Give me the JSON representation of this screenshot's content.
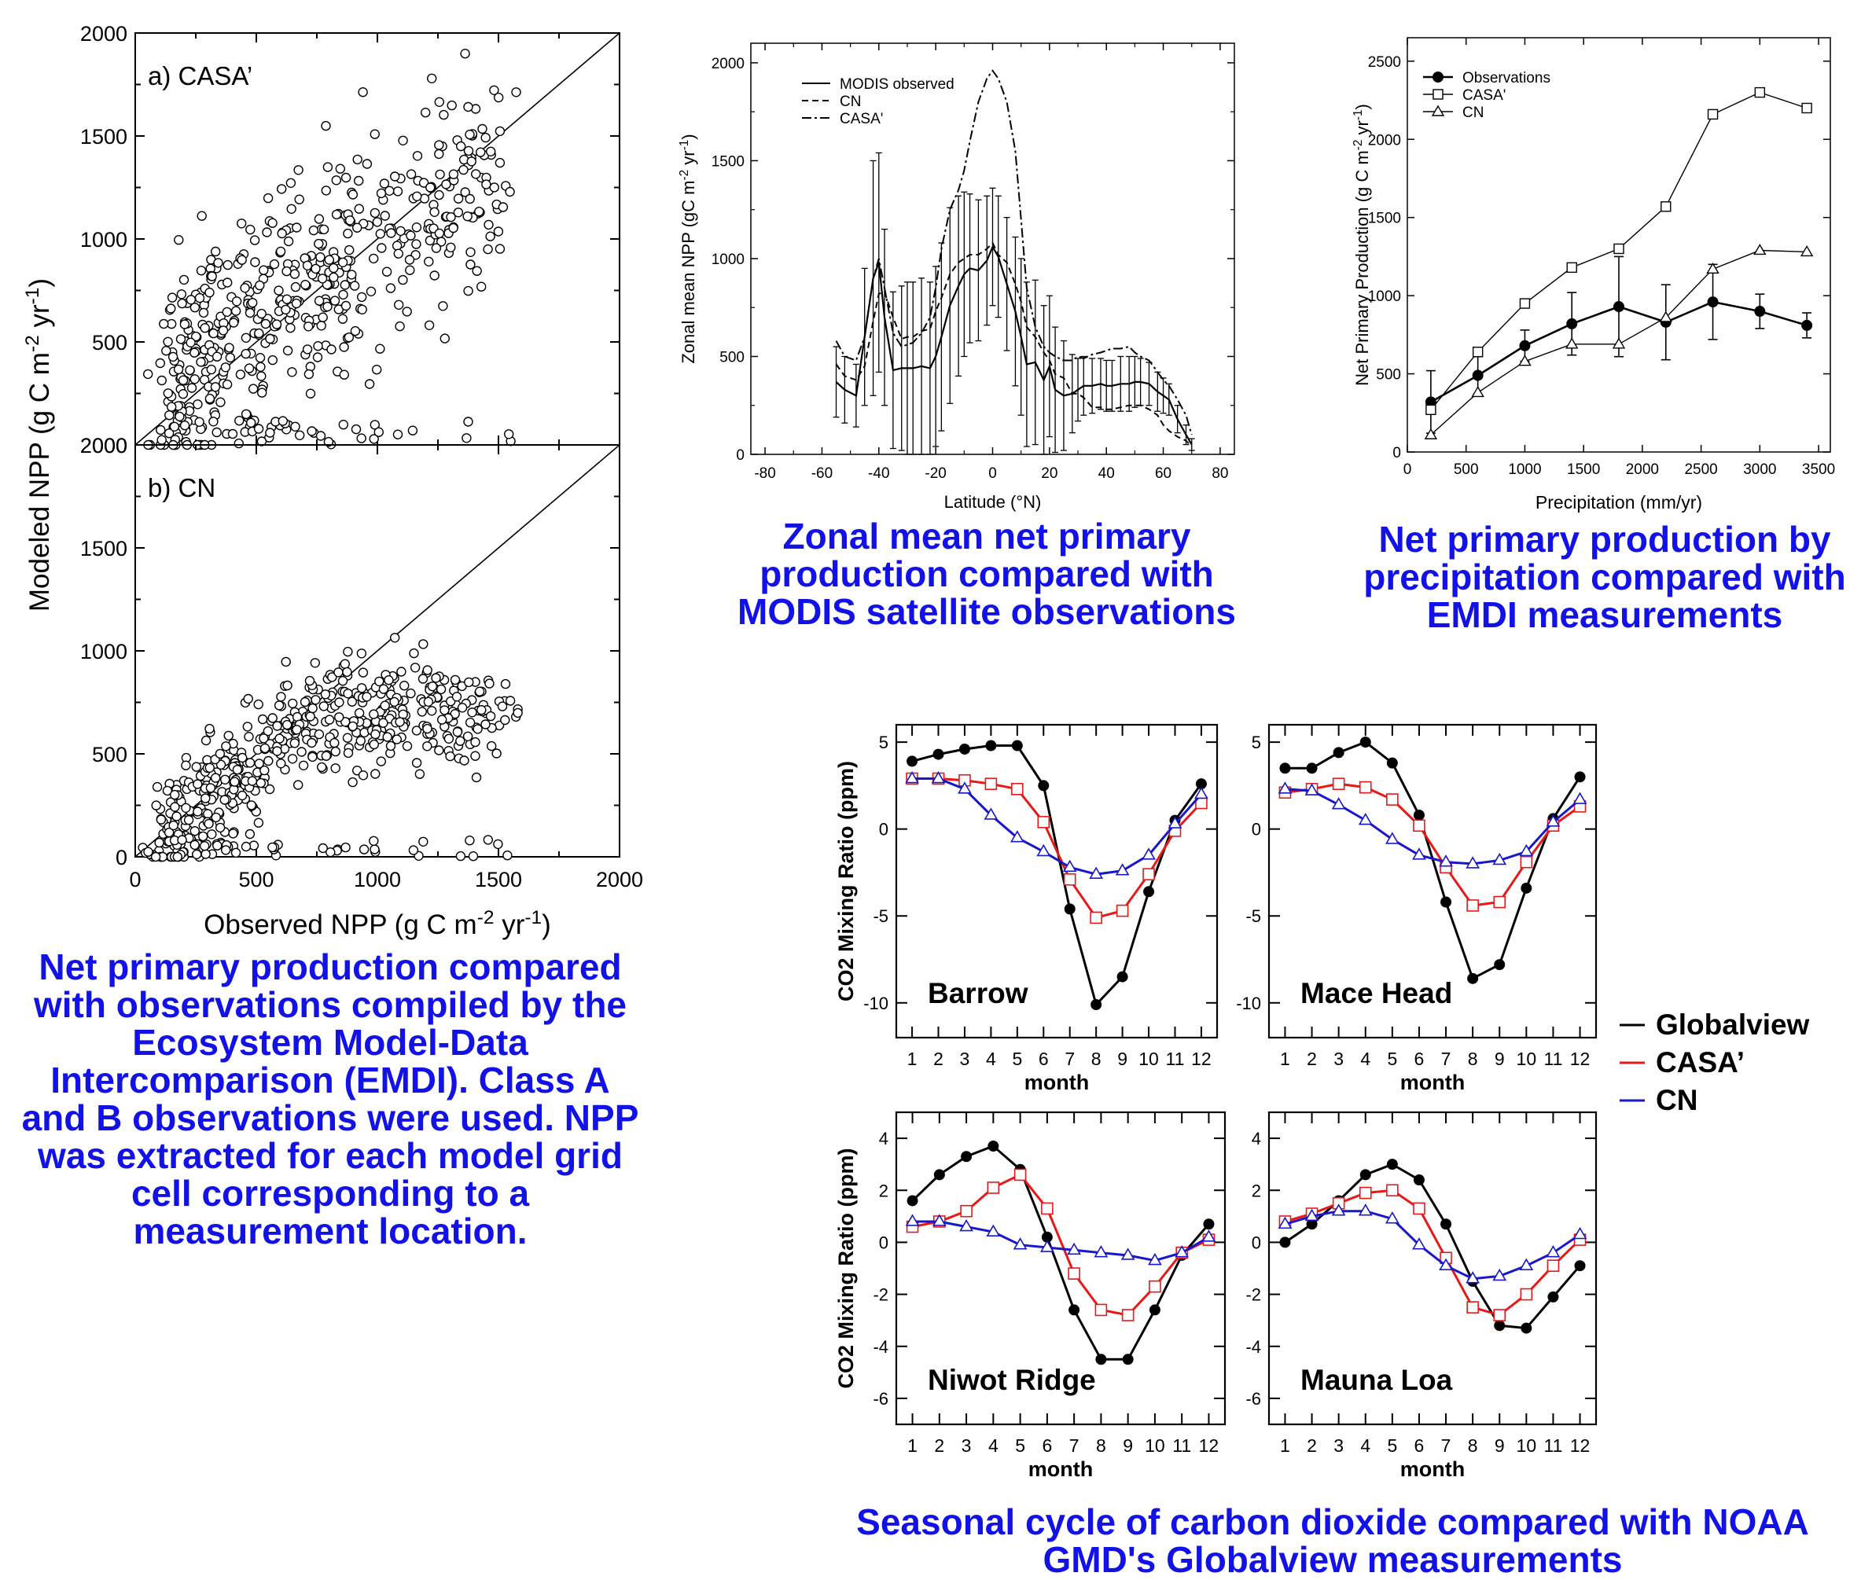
{
  "captions": {
    "scatter": "Net primary production compared with observations compiled by the Ecosystem Model-Data Intercomparison (EMDI).  Class A and B observations were used.  NPP was extracted for each model grid cell corresponding to a measurement location.",
    "zonal": "Zonal mean net primary production compared with MODIS satellite observations",
    "precip": "Net primary production by precipitation compared with EMDI measurements",
    "seasonal": "Seasonal cycle of carbon dioxide compared with NOAA GMD's Globalview measurements"
  },
  "colors": {
    "caption": "#1212e8",
    "globalview": "#000000",
    "casa": "#e81818",
    "cn": "#1818c8"
  },
  "chart_data": [
    {
      "id": "scatter",
      "type": "scatter",
      "panels": [
        {
          "label": "a) CASA’",
          "trend": "scattered high, mean ~850 at obs 400-1200"
        },
        {
          "label": "b) CN",
          "trend": "saturates near 700 above obs ~800"
        }
      ],
      "xlabel": "Observed NPP (g C m-2 yr-1)",
      "ylabel": "Modeled NPP (g C m-2 yr-1)",
      "xlim": [
        0,
        2000
      ],
      "ylim": [
        0,
        2000
      ],
      "xticks": [
        "0",
        "500",
        "1000",
        "1500",
        "2000"
      ],
      "yticks": [
        "0",
        "500",
        "1000",
        "1500",
        "2000"
      ],
      "marker": "open circle",
      "reference_line": "1:1"
    },
    {
      "id": "zonal",
      "type": "line",
      "xlabel": "Latitude (°N)",
      "ylabel": "Zonal mean NPP (gC m-2 yr-1)",
      "xlim": [
        -85,
        85
      ],
      "ylim": [
        0,
        2100
      ],
      "xticks": [
        "-80",
        "-60",
        "-40",
        "-20",
        "0",
        "20",
        "40",
        "60",
        "80"
      ],
      "yticks": [
        "0",
        "500",
        "1000",
        "1500",
        "2000"
      ],
      "legend": [
        "MODIS observed",
        "CN",
        "CASA'"
      ],
      "series": [
        {
          "name": "MODIS observed",
          "style": "solid",
          "x": [
            -55,
            -52,
            -48,
            -45,
            -42,
            -40,
            -38,
            -35,
            -32,
            -30,
            -28,
            -25,
            -22,
            -20,
            -18,
            -15,
            -12,
            -10,
            -8,
            -5,
            -2,
            0,
            2,
            5,
            8,
            10,
            12,
            15,
            18,
            20,
            22,
            25,
            28,
            30,
            32,
            35,
            38,
            40,
            42,
            45,
            48,
            50,
            52,
            55,
            58,
            60,
            62,
            65,
            68,
            70
          ],
          "y": [
            370,
            330,
            300,
            600,
            900,
            980,
            700,
            430,
            440,
            440,
            440,
            450,
            440,
            500,
            600,
            760,
            860,
            920,
            950,
            940,
            990,
            1060,
            1010,
            870,
            730,
            600,
            460,
            470,
            380,
            450,
            330,
            300,
            310,
            330,
            350,
            350,
            360,
            350,
            350,
            360,
            360,
            370,
            370,
            360,
            320,
            300,
            280,
            180,
            100,
            50
          ],
          "err": [
            180,
            170,
            160,
            350,
            600,
            560,
            450,
            400,
            420,
            440,
            440,
            450,
            440,
            460,
            480,
            500,
            460,
            420,
            380,
            360,
            330,
            300,
            310,
            340,
            380,
            400,
            420,
            420,
            380,
            360,
            320,
            280,
            200,
            160,
            150,
            140,
            130,
            130,
            130,
            140,
            140,
            130,
            120,
            110,
            100,
            90,
            80,
            70,
            50,
            30
          ]
        },
        {
          "name": "CN",
          "style": "dashed",
          "x": [
            -55,
            -52,
            -48,
            -45,
            -42,
            -40,
            -38,
            -35,
            -32,
            -30,
            -28,
            -25,
            -22,
            -20,
            -18,
            -15,
            -12,
            -10,
            -8,
            -5,
            -2,
            0,
            2,
            5,
            8,
            10,
            12,
            15,
            18,
            20,
            22,
            25,
            28,
            30,
            32,
            35,
            38,
            40,
            42,
            45,
            48,
            50,
            52,
            55,
            58,
            60,
            62,
            65,
            68,
            70
          ],
          "y": [
            460,
            400,
            380,
            450,
            680,
            820,
            830,
            700,
            590,
            600,
            600,
            630,
            640,
            730,
            800,
            920,
            980,
            1000,
            1020,
            1020,
            1050,
            1080,
            1020,
            980,
            870,
            780,
            650,
            600,
            520,
            480,
            410,
            390,
            310,
            310,
            290,
            240,
            240,
            230,
            230,
            240,
            250,
            250,
            250,
            230,
            200,
            150,
            120,
            90,
            70,
            40
          ]
        },
        {
          "name": "CASA'",
          "style": "dashdot",
          "x": [
            -55,
            -52,
            -48,
            -45,
            -42,
            -40,
            -38,
            -35,
            -32,
            -30,
            -28,
            -25,
            -22,
            -20,
            -18,
            -15,
            -12,
            -10,
            -8,
            -5,
            -2,
            0,
            2,
            5,
            8,
            10,
            12,
            15,
            18,
            20,
            22,
            25,
            28,
            30,
            32,
            35,
            38,
            40,
            42,
            45,
            48,
            50,
            52,
            55,
            58,
            60,
            62,
            65,
            68,
            70
          ],
          "y": [
            580,
            500,
            480,
            600,
            900,
            1000,
            850,
            620,
            550,
            560,
            570,
            620,
            700,
            850,
            1050,
            1250,
            1350,
            1450,
            1600,
            1800,
            1920,
            1960,
            1920,
            1800,
            1550,
            1200,
            850,
            650,
            550,
            520,
            500,
            480,
            480,
            500,
            490,
            510,
            520,
            530,
            540,
            540,
            550,
            520,
            500,
            480,
            420,
            380,
            350,
            280,
            200,
            100
          ]
        }
      ]
    },
    {
      "id": "precip",
      "type": "line",
      "xlabel": "Precipitation (mm/yr)",
      "ylabel": "Net Primary Production (g C m-2 yr-1)",
      "xlim": [
        0,
        3600
      ],
      "ylim": [
        0,
        2650
      ],
      "xticks": [
        "0",
        "500",
        "1000",
        "1500",
        "2000",
        "2500",
        "3000",
        "3500"
      ],
      "yticks": [
        "0",
        "500",
        "1000",
        "1500",
        "2000",
        "2500"
      ],
      "series": [
        {
          "name": "Observations",
          "marker": "filled circle",
          "x": [
            200,
            600,
            1000,
            1400,
            1800,
            2200,
            2600,
            3000,
            3400
          ],
          "y": [
            320,
            490,
            680,
            820,
            930,
            830,
            960,
            900,
            810
          ],
          "err": [
            200,
            120,
            100,
            200,
            320,
            240,
            240,
            110,
            80
          ]
        },
        {
          "name": "CASA'",
          "marker": "open square",
          "x": [
            200,
            600,
            1000,
            1400,
            1800,
            2200,
            2600,
            3000,
            3400
          ],
          "y": [
            270,
            640,
            950,
            1180,
            1300,
            1570,
            2160,
            2300,
            2200
          ]
        },
        {
          "name": "CN",
          "marker": "open triangle",
          "x": [
            200,
            600,
            1000,
            1400,
            1800,
            2200,
            2600,
            3000,
            3400
          ],
          "y": [
            110,
            380,
            580,
            690,
            690,
            860,
            1170,
            1290,
            1280
          ]
        }
      ]
    },
    {
      "id": "seasonal",
      "type": "line",
      "xlabel": "month",
      "ylabel": "CO2 Mixing Ratio (ppm)",
      "legend": [
        "Globalview",
        "CASA’",
        "CN"
      ],
      "months": [
        "1",
        "2",
        "3",
        "4",
        "5",
        "6",
        "7",
        "8",
        "9",
        "10",
        "11",
        "12"
      ],
      "panels": [
        {
          "station": "Barrow",
          "ylim": [
            -12,
            6
          ],
          "yticks": [
            "5",
            "0",
            "-5",
            "-10"
          ],
          "series": [
            {
              "name": "Globalview",
              "values": [
                3.9,
                4.3,
                4.6,
                4.8,
                4.8,
                2.5,
                -4.6,
                -10.1,
                -8.5,
                -3.6,
                0.5,
                2.6
              ]
            },
            {
              "name": "CASA’",
              "values": [
                2.9,
                2.9,
                2.8,
                2.6,
                2.3,
                0.4,
                -2.9,
                -5.1,
                -4.7,
                -2.6,
                -0.1,
                1.5
              ]
            },
            {
              "name": "CN",
              "values": [
                2.9,
                2.9,
                2.3,
                0.8,
                -0.5,
                -1.3,
                -2.2,
                -2.6,
                -2.4,
                -1.5,
                0.3,
                2.0
              ]
            }
          ]
        },
        {
          "station": "Mace Head",
          "ylim": [
            -12,
            6
          ],
          "yticks": [
            "5",
            "0",
            "-5",
            "-10"
          ],
          "series": [
            {
              "name": "Globalview",
              "values": [
                3.5,
                3.5,
                4.4,
                5.0,
                3.8,
                0.8,
                -4.2,
                -8.6,
                -7.8,
                -3.4,
                0.6,
                3.0
              ]
            },
            {
              "name": "CASA’",
              "values": [
                2.1,
                2.3,
                2.6,
                2.4,
                1.7,
                0.2,
                -2.2,
                -4.4,
                -4.2,
                -1.9,
                0.2,
                1.3
              ]
            },
            {
              "name": "CN",
              "values": [
                2.3,
                2.2,
                1.4,
                0.5,
                -0.6,
                -1.5,
                -1.9,
                -2.0,
                -1.8,
                -1.3,
                0.4,
                1.7
              ]
            }
          ]
        },
        {
          "station": "Niwot Ridge",
          "ylim": [
            -7,
            5
          ],
          "yticks": [
            "4",
            "2",
            "0",
            "-2",
            "-4",
            "-6"
          ],
          "series": [
            {
              "name": "Globalview",
              "values": [
                1.6,
                2.6,
                3.3,
                3.7,
                2.8,
                0.2,
                -2.6,
                -4.5,
                -4.5,
                -2.6,
                -0.5,
                0.7
              ]
            },
            {
              "name": "CASA’",
              "values": [
                0.6,
                0.8,
                1.2,
                2.1,
                2.6,
                1.3,
                -1.2,
                -2.6,
                -2.8,
                -1.7,
                -0.4,
                0.1
              ]
            },
            {
              "name": "CN",
              "values": [
                0.8,
                0.8,
                0.6,
                0.4,
                -0.1,
                -0.2,
                -0.3,
                -0.4,
                -0.5,
                -0.7,
                -0.4,
                0.2
              ]
            }
          ]
        },
        {
          "station": "Mauna Loa",
          "ylim": [
            -7,
            5
          ],
          "yticks": [
            "4",
            "2",
            "0",
            "-2",
            "-4",
            "-6"
          ],
          "series": [
            {
              "name": "Globalview",
              "values": [
                0.0,
                0.7,
                1.6,
                2.6,
                3.0,
                2.4,
                0.7,
                -1.5,
                -3.2,
                -3.3,
                -2.1,
                -0.9
              ]
            },
            {
              "name": "CASA’",
              "values": [
                0.8,
                1.1,
                1.5,
                1.9,
                2.0,
                1.3,
                -0.6,
                -2.5,
                -2.8,
                -2.0,
                -0.9,
                0.1
              ]
            },
            {
              "name": "CN",
              "values": [
                0.7,
                1.0,
                1.2,
                1.2,
                0.9,
                -0.1,
                -0.9,
                -1.4,
                -1.3,
                -0.9,
                -0.4,
                0.3
              ]
            }
          ]
        }
      ]
    }
  ]
}
